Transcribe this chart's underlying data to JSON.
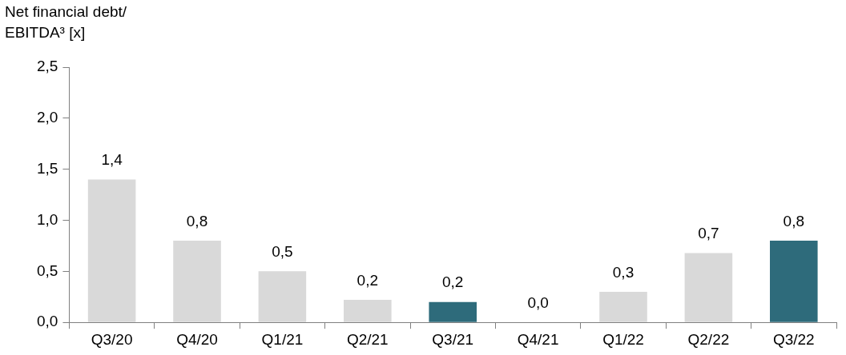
{
  "chart_data": {
    "type": "bar",
    "ylabel": "Net financial debt/ EBITDA³ [x]",
    "categories": [
      "Q3/20",
      "Q4/20",
      "Q1/21",
      "Q2/21",
      "Q3/21",
      "Q4/21",
      "Q1/22",
      "Q2/22",
      "Q3/22"
    ],
    "values": [
      1.4,
      0.8,
      0.5,
      0.22,
      0.2,
      0.0,
      0.3,
      0.68,
      0.8
    ],
    "colors": [
      "#d9d9d9",
      "#d9d9d9",
      "#d9d9d9",
      "#d9d9d9",
      "#2e6b7b",
      "#d9d9d9",
      "#d9d9d9",
      "#d9d9d9",
      "#2e6b7b"
    ],
    "value_labels": [
      "1,4",
      "0,8",
      "0,5",
      "0,2",
      "0,2",
      "0,0",
      "0,3",
      "0,7",
      "0,8"
    ],
    "ylim": [
      0,
      2.5
    ],
    "yticks": [
      {
        "value": 0,
        "label": "0,0"
      },
      {
        "value": 0.5,
        "label": "0,5"
      },
      {
        "value": 1,
        "label": "1,0"
      },
      {
        "value": 1.5,
        "label": "1,5"
      },
      {
        "value": 2,
        "label": "2,0"
      },
      {
        "value": 2.5,
        "label": "2,5"
      }
    ],
    "grid": false,
    "legend": false
  }
}
